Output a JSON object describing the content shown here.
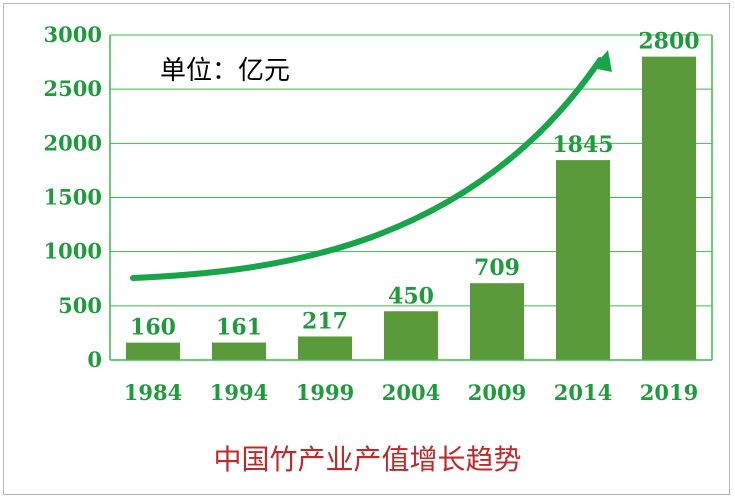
{
  "chart_data": {
    "type": "bar",
    "title": "中国竹产业产值增长趋势",
    "unit_label": "单位：亿元",
    "categories": [
      "1984",
      "1994",
      "1999",
      "2004",
      "2009",
      "2014",
      "2019"
    ],
    "values": [
      160,
      161,
      217,
      450,
      709,
      1845,
      2800
    ],
    "data_labels": [
      "160",
      "161",
      "217",
      "450",
      "709",
      "1845",
      "2800"
    ],
    "y_ticks": [
      "0",
      "500",
      "1000",
      "1500",
      "2000",
      "2500",
      "3000"
    ],
    "ylim": [
      0,
      3000
    ],
    "grid": true,
    "annotation": "upward trend arrow",
    "colors": {
      "bar": "#5a9a3b",
      "axis_text": "#1f9a3d",
      "grid": "#3cbb4a",
      "arrow": "#18a54a",
      "title": "#c0282a"
    }
  }
}
